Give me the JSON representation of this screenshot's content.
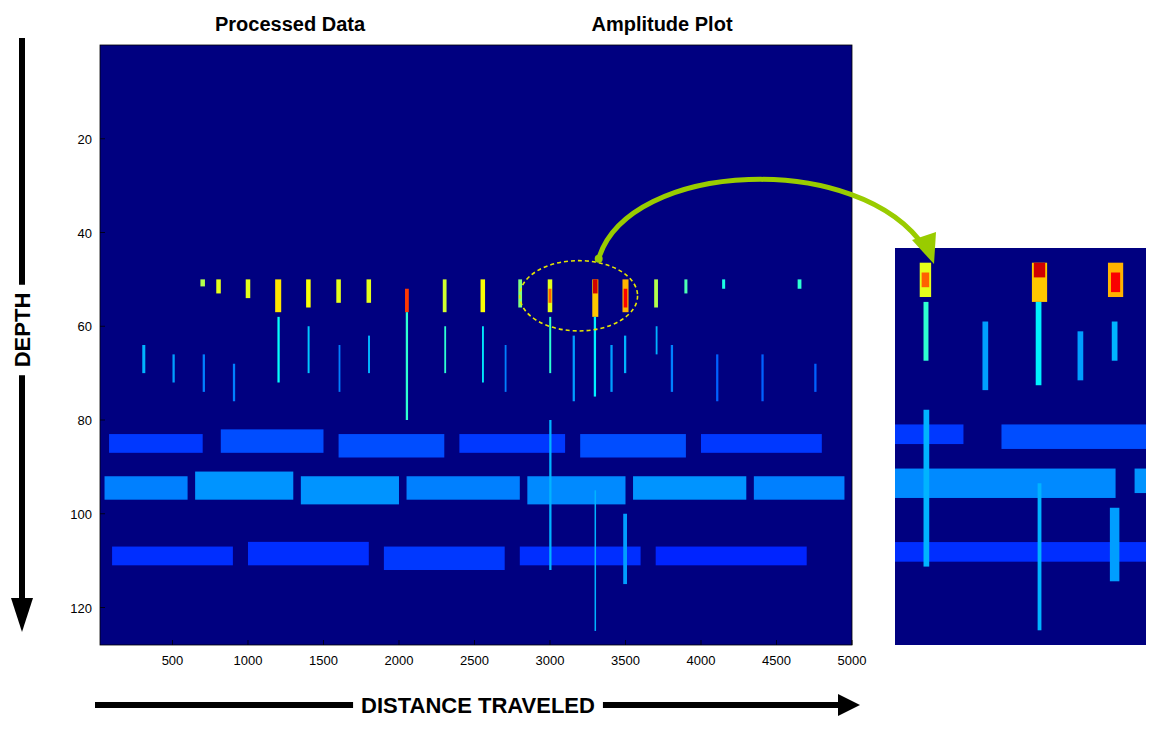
{
  "chart_data": {
    "type": "heatmap",
    "title": "Processed Data",
    "subtitle": "Amplitude Plot",
    "x_label": "DISTANCE TRAVELED",
    "y_label": "DEPTH",
    "xlim": [
      20,
      5000
    ],
    "ylim": [
      0,
      128
    ],
    "xticks": [
      500,
      1000,
      1500,
      2000,
      2500,
      3000,
      3500,
      4000,
      4500,
      5000
    ],
    "yticks": [
      20,
      40,
      60,
      80,
      100,
      120
    ],
    "color_range": [
      0,
      1
    ],
    "cells": [
      [
        685,
        715,
        50,
        51.5,
        0.55
      ],
      [
        790,
        820,
        50,
        53,
        0.6
      ],
      [
        985,
        1015,
        50,
        54,
        0.6
      ],
      [
        1180,
        1220,
        50,
        57,
        0.65
      ],
      [
        1385,
        1415,
        50,
        56,
        0.62
      ],
      [
        1585,
        1615,
        50,
        55,
        0.6
      ],
      [
        1785,
        1815,
        50,
        55,
        0.6
      ],
      [
        2040,
        2065,
        52,
        57,
        0.82
      ],
      [
        2290,
        2315,
        50,
        57,
        0.58
      ],
      [
        2540,
        2570,
        50,
        57,
        0.62
      ],
      [
        2790,
        2815,
        50,
        56,
        0.5
      ],
      [
        2985,
        3015,
        50,
        57,
        0.6
      ],
      [
        2990,
        3010,
        52,
        55,
        0.78
      ],
      [
        3280,
        3320,
        50,
        58,
        0.68
      ],
      [
        3285,
        3315,
        50,
        53,
        0.92
      ],
      [
        3480,
        3520,
        50,
        57,
        0.7
      ],
      [
        3488,
        3512,
        52,
        56,
        0.88
      ],
      [
        3690,
        3715,
        50,
        56,
        0.55
      ],
      [
        3890,
        3910,
        50,
        53,
        0.45
      ],
      [
        4140,
        4160,
        50,
        52,
        0.4
      ],
      [
        4640,
        4665,
        50,
        52,
        0.42
      ],
      [
        1195,
        1210,
        58,
        72,
        0.38
      ],
      [
        1395,
        1408,
        60,
        70,
        0.32
      ],
      [
        1795,
        1808,
        62,
        70,
        0.3
      ],
      [
        2045,
        2060,
        57,
        80,
        0.42
      ],
      [
        2300,
        2312,
        60,
        70,
        0.42
      ],
      [
        2550,
        2562,
        60,
        72,
        0.36
      ],
      [
        2995,
        3008,
        58,
        70,
        0.42
      ],
      [
        3290,
        3305,
        58,
        75,
        0.36
      ],
      [
        3490,
        3505,
        62,
        70,
        0.3
      ],
      [
        3700,
        3712,
        60,
        66,
        0.3
      ],
      [
        300,
        320,
        64,
        70,
        0.3
      ],
      [
        500,
        515,
        66,
        72,
        0.28
      ],
      [
        700,
        715,
        66,
        74,
        0.25
      ],
      [
        900,
        915,
        68,
        76,
        0.25
      ],
      [
        1600,
        1612,
        64,
        74,
        0.25
      ],
      [
        2700,
        2712,
        64,
        74,
        0.25
      ],
      [
        3150,
        3165,
        62,
        76,
        0.28
      ],
      [
        3400,
        3415,
        64,
        74,
        0.28
      ],
      [
        3800,
        3815,
        64,
        74,
        0.25
      ],
      [
        4100,
        4115,
        66,
        76,
        0.22
      ],
      [
        4400,
        4415,
        66,
        76,
        0.22
      ],
      [
        4750,
        4765,
        68,
        74,
        0.22
      ],
      [
        80,
        700,
        83,
        87,
        0.18
      ],
      [
        820,
        1500,
        82,
        87,
        0.2
      ],
      [
        1600,
        2300,
        83,
        88,
        0.2
      ],
      [
        2400,
        3100,
        83,
        87,
        0.18
      ],
      [
        3200,
        3900,
        83,
        88,
        0.2
      ],
      [
        4000,
        4800,
        83,
        87,
        0.18
      ],
      [
        50,
        600,
        92,
        97,
        0.25
      ],
      [
        650,
        1300,
        91,
        97,
        0.27
      ],
      [
        1350,
        2000,
        92,
        98,
        0.27
      ],
      [
        2050,
        2800,
        92,
        97,
        0.25
      ],
      [
        2850,
        3500,
        92,
        98,
        0.26
      ],
      [
        3550,
        4300,
        92,
        97,
        0.27
      ],
      [
        4350,
        4950,
        92,
        97,
        0.25
      ],
      [
        100,
        900,
        107,
        111,
        0.17
      ],
      [
        1000,
        1800,
        106,
        111,
        0.17
      ],
      [
        1900,
        2700,
        107,
        112,
        0.18
      ],
      [
        2800,
        3600,
        107,
        111,
        0.17
      ],
      [
        3700,
        4700,
        107,
        111,
        0.16
      ],
      [
        2995,
        3010,
        80,
        112,
        0.3
      ],
      [
        3295,
        3305,
        95,
        125,
        0.3
      ],
      [
        3485,
        3510,
        100,
        115,
        0.28
      ]
    ],
    "highlight": {
      "xlim": [
        2800,
        3580
      ],
      "ylim": [
        46,
        61
      ]
    },
    "zoom": {
      "xlim": [
        2920,
        3580
      ],
      "ylim": [
        47,
        128
      ]
    }
  }
}
